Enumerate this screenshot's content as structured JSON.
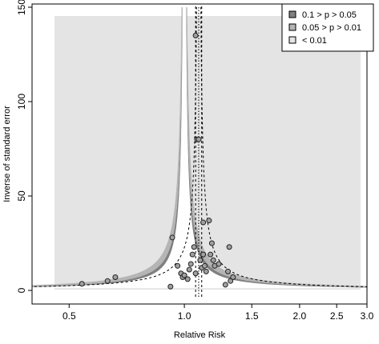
{
  "chart_data": {
    "type": "scatter",
    "title": "",
    "xlabel": "Relative Risk",
    "ylabel": "Inverse of standard error",
    "x_scale": "log",
    "xlim": [
      0.4,
      3.0
    ],
    "ylim": [
      0,
      150
    ],
    "x_ticks": [
      {
        "value": 0.5,
        "label": "0.5"
      },
      {
        "value": 1.0,
        "label": "1.0"
      },
      {
        "value": 1.5,
        "label": "1.5"
      },
      {
        "value": 2.0,
        "label": "2.0"
      },
      {
        "value": 2.5,
        "label": "2.5"
      },
      {
        "value": 3.0,
        "label": "3.0"
      }
    ],
    "y_ticks": [
      {
        "value": 0,
        "label": "0"
      },
      {
        "value": 50,
        "label": "50"
      },
      {
        "value": 100,
        "label": "100"
      },
      {
        "value": 150,
        "label": "150"
      }
    ],
    "pooled_estimate": 1.09,
    "pooled_ci": [
      1.07,
      1.11
    ],
    "legend": {
      "position": "top-right",
      "items": [
        {
          "label": "0.1 > p > 0.05",
          "color": "#808080"
        },
        {
          "label": "0.05 > p > 0.01",
          "color": "#b5b5b5"
        },
        {
          "label": "< 0.01",
          "color": "#e4e4e4"
        }
      ]
    },
    "colors": {
      "background": "#e4e4e4",
      "band_p10": "#808080",
      "band_p05": "#b5b5b5",
      "point_fill": "#a0a0a0",
      "point_stroke": "#222222"
    },
    "points": [
      {
        "rr": 0.54,
        "precision": 3.5
      },
      {
        "rr": 0.63,
        "precision": 5
      },
      {
        "rr": 0.66,
        "precision": 7
      },
      {
        "rr": 0.93,
        "precision": 28
      },
      {
        "rr": 0.92,
        "precision": 2
      },
      {
        "rr": 0.96,
        "precision": 13
      },
      {
        "rr": 0.98,
        "precision": 9
      },
      {
        "rr": 0.99,
        "precision": 7
      },
      {
        "rr": 1.0,
        "precision": 8
      },
      {
        "rr": 1.02,
        "precision": 6
      },
      {
        "rr": 1.03,
        "precision": 11
      },
      {
        "rr": 1.04,
        "precision": 14
      },
      {
        "rr": 1.05,
        "precision": 19
      },
      {
        "rr": 1.06,
        "precision": 23
      },
      {
        "rr": 1.07,
        "precision": 9
      },
      {
        "rr": 1.07,
        "precision": 135
      },
      {
        "rr": 1.08,
        "precision": 80
      },
      {
        "rr": 1.09,
        "precision": 80
      },
      {
        "rr": 1.1,
        "precision": 16
      },
      {
        "rr": 1.11,
        "precision": 12
      },
      {
        "rr": 1.12,
        "precision": 36
      },
      {
        "rr": 1.12,
        "precision": 19
      },
      {
        "rr": 1.13,
        "precision": 13
      },
      {
        "rr": 1.14,
        "precision": 10
      },
      {
        "rr": 1.16,
        "precision": 37
      },
      {
        "rr": 1.17,
        "precision": 19
      },
      {
        "rr": 1.18,
        "precision": 25
      },
      {
        "rr": 1.19,
        "precision": 16
      },
      {
        "rr": 1.2,
        "precision": 13
      },
      {
        "rr": 1.23,
        "precision": 14
      },
      {
        "rr": 1.28,
        "precision": 3
      },
      {
        "rr": 1.3,
        "precision": 10
      },
      {
        "rr": 1.31,
        "precision": 23
      },
      {
        "rr": 1.32,
        "precision": 5
      },
      {
        "rr": 1.34,
        "precision": 7
      }
    ]
  }
}
